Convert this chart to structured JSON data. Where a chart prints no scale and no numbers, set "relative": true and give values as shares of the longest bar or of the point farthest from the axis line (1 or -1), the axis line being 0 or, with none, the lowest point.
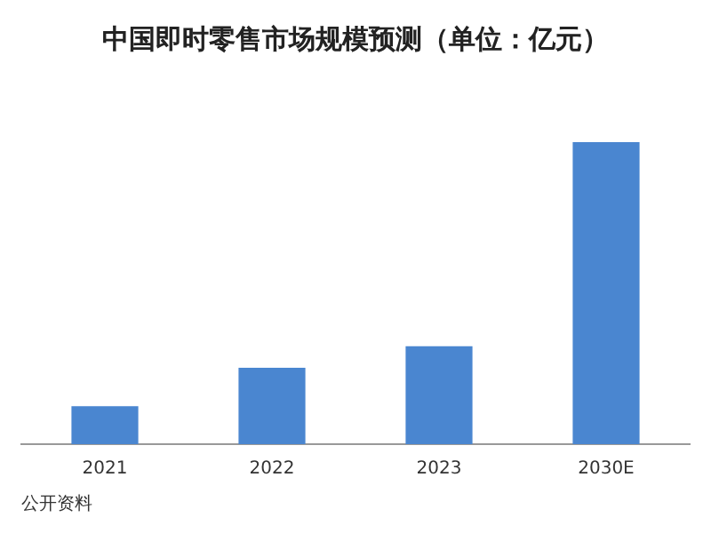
{
  "chart_data": {
    "type": "bar",
    "title": "中国即时零售市场规模预测（单位：亿元）",
    "categories": [
      "2021",
      "2022",
      "2023",
      "2030E"
    ],
    "values": [
      0.126,
      0.253,
      0.324,
      1
    ],
    "color": "#4a86d0",
    "relative": true,
    "grid": false,
    "legend": false,
    "annotations": [
      "公开资料"
    ]
  }
}
